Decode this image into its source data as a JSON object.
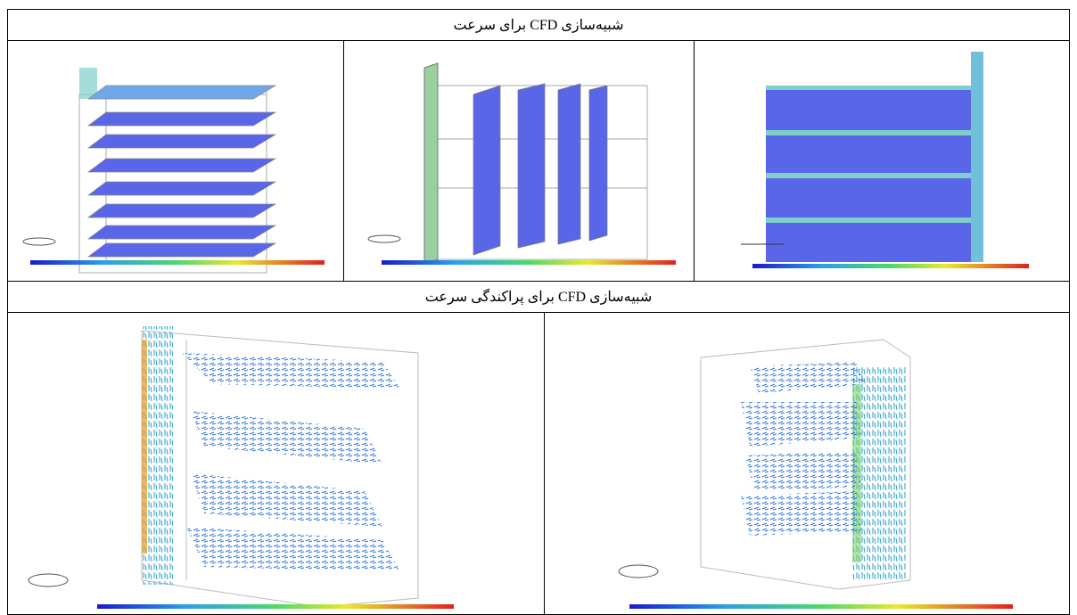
{
  "table": {
    "rows": [
      {
        "header": "شبیه‌سازی CFD برای سرعت"
      },
      {
        "header": "شبیه‌سازی CFD برای  پراکندگی سرعت"
      }
    ]
  }
}
